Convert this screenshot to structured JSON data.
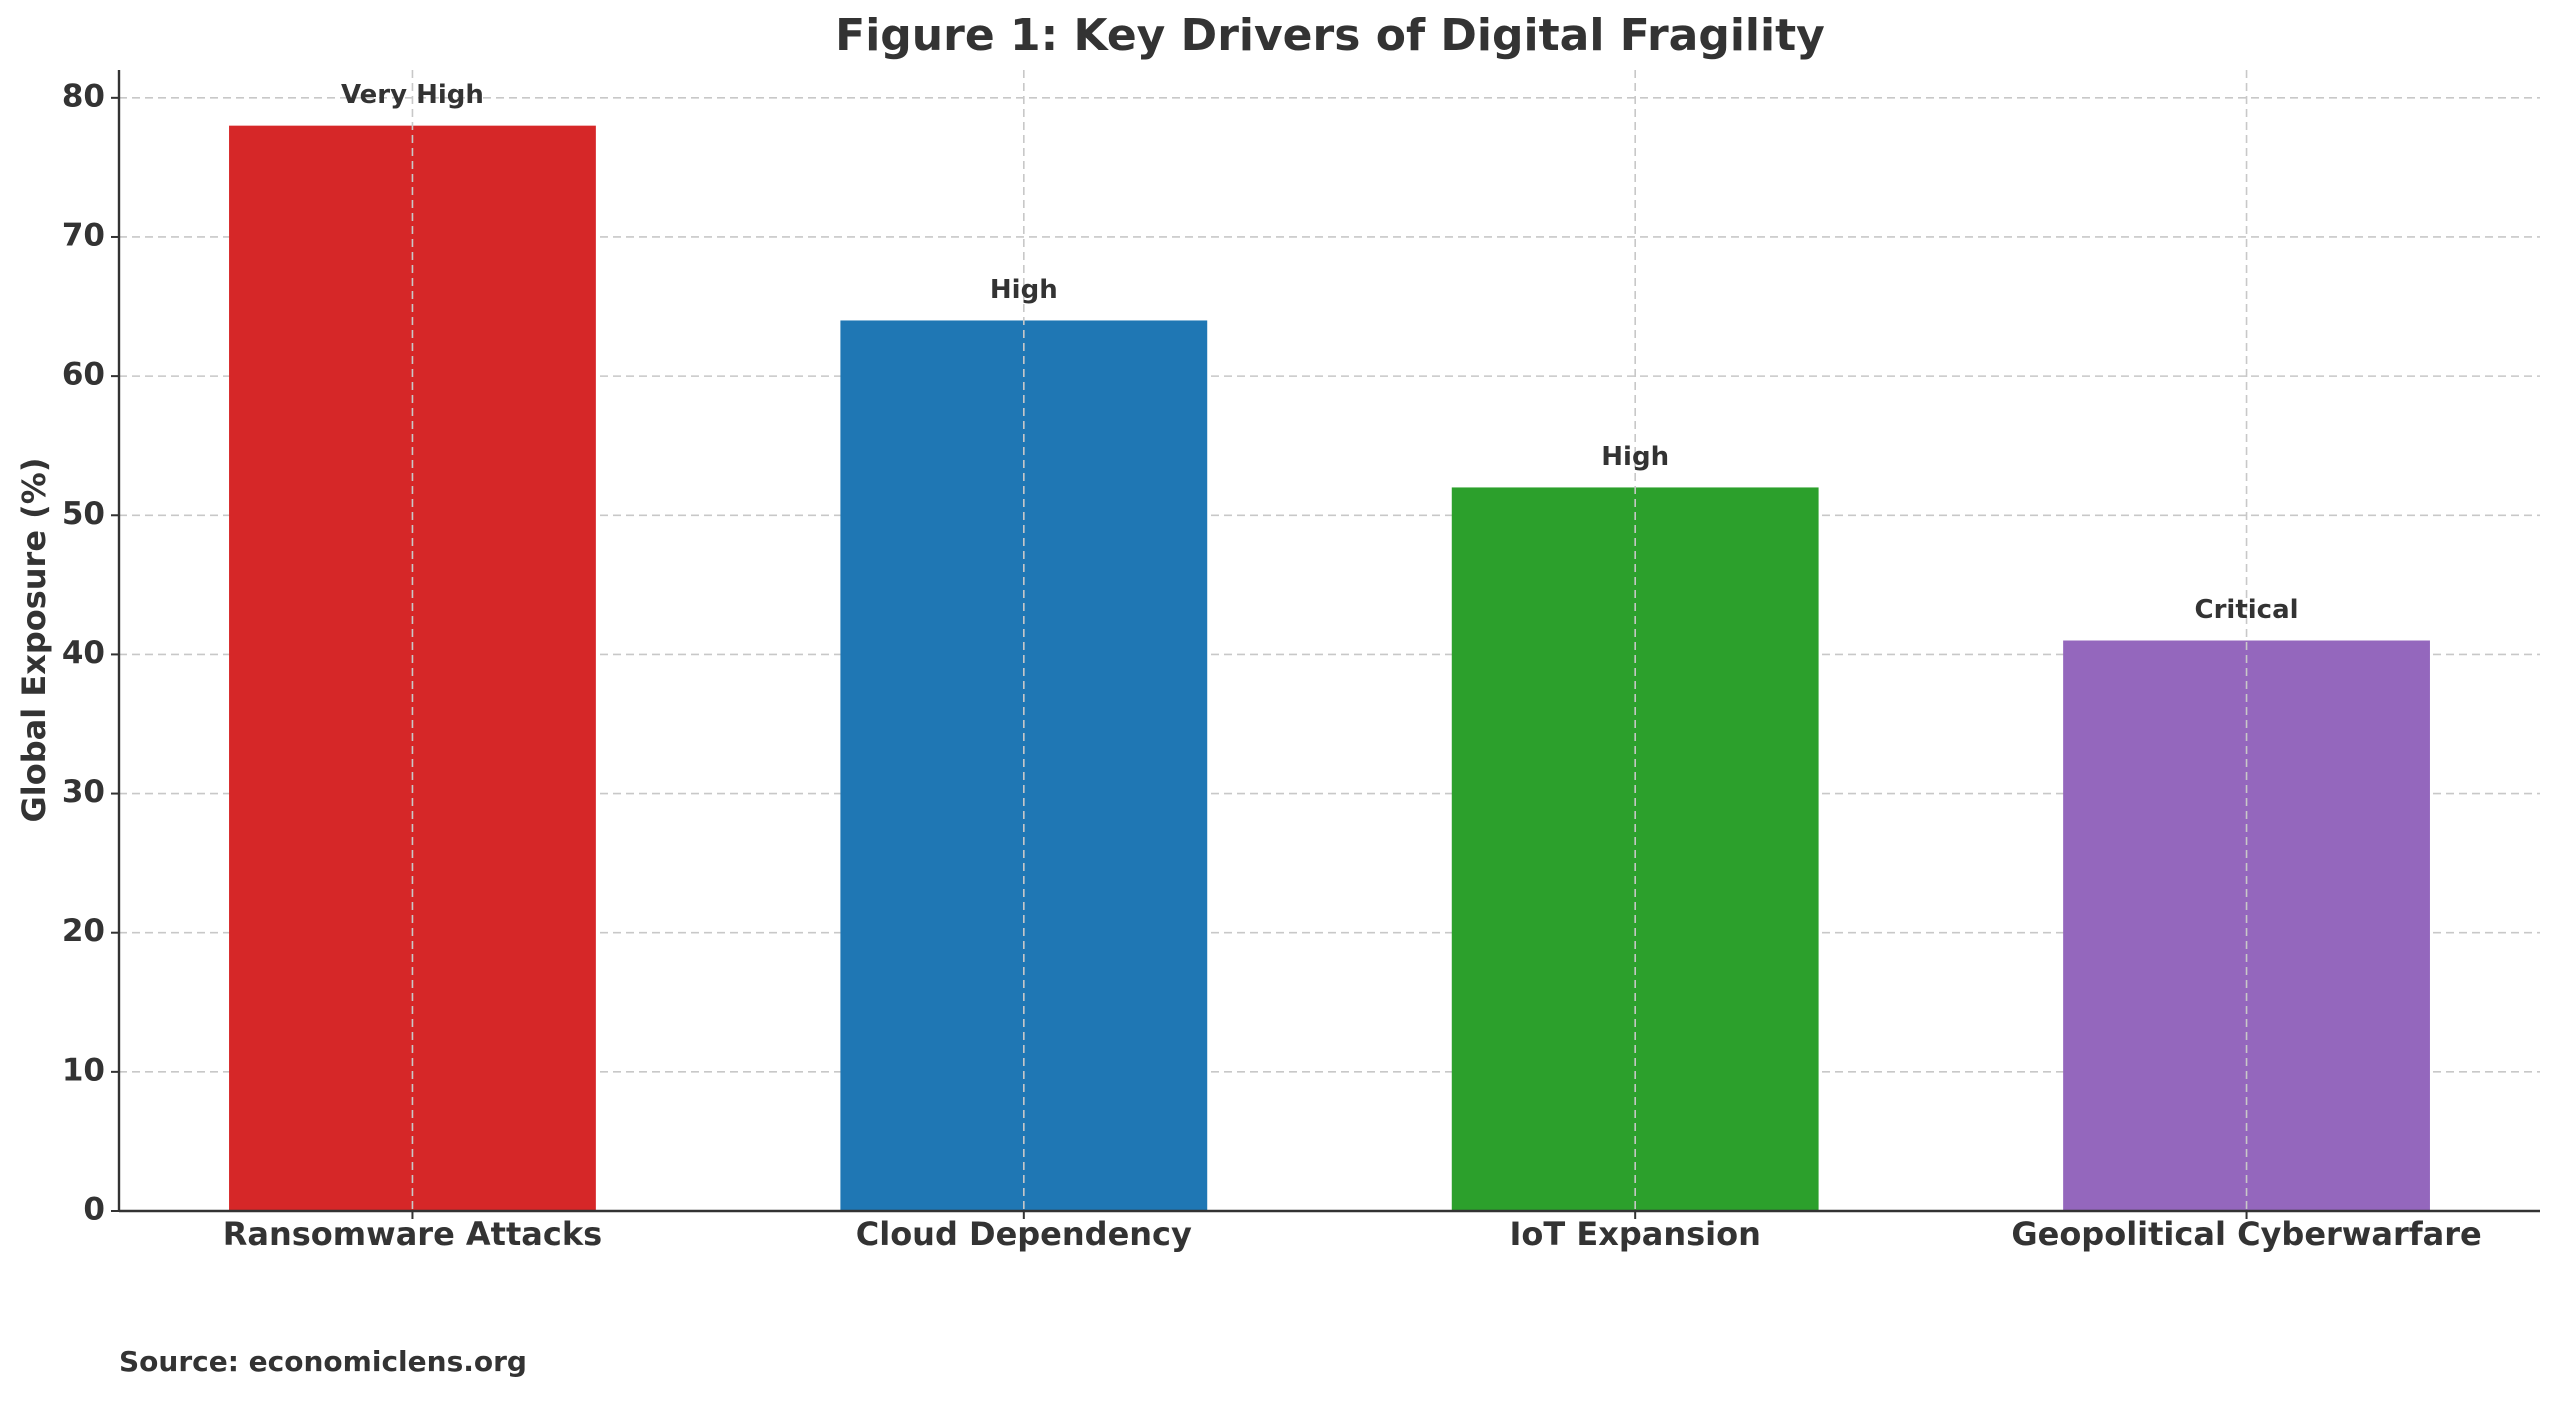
{
  "chart_data": {
    "type": "bar",
    "title": "Figure 1: Key Drivers of Digital Fragility",
    "ylabel": "Global Exposure (%)",
    "categories": [
      "Ransomware Attacks",
      "Cloud Dependency",
      "IoT Expansion",
      "Geopolitical Cyberwarfare"
    ],
    "values": [
      78,
      64,
      52,
      41
    ],
    "colors": [
      "#d62728",
      "#1f77b4",
      "#2ca02c",
      "#9467bd"
    ],
    "annotations": [
      "Very High",
      "High",
      "High",
      "Critical"
    ],
    "ylim": [
      0,
      82
    ],
    "yticks": [
      0,
      10,
      20,
      30,
      40,
      50,
      60,
      70,
      80
    ],
    "grid": true,
    "source": "Source: economiclens.org"
  }
}
